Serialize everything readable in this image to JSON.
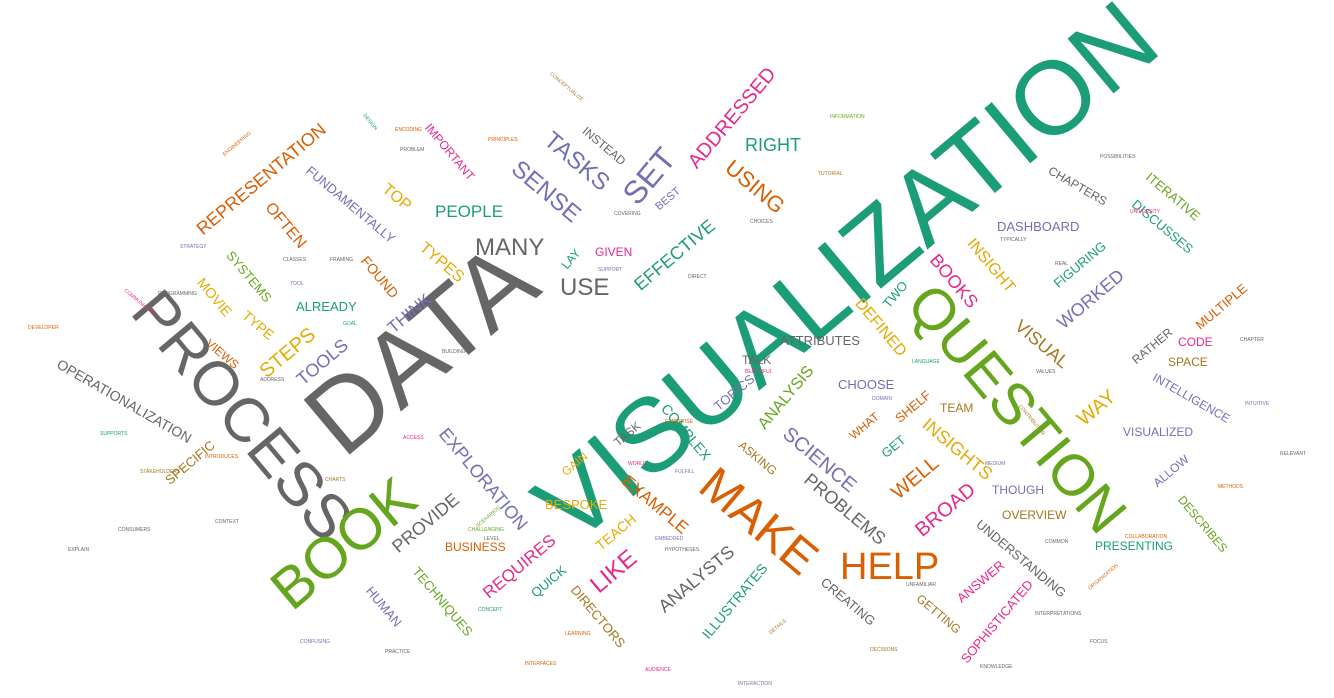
{
  "palette": {
    "teal": "#1b9e77",
    "orange": "#d95f02",
    "purple": "#7570b3",
    "magenta": "#e7298a",
    "green": "#66a61e",
    "gold": "#e6ab02",
    "brown": "#a6761d",
    "gray": "#666666"
  },
  "words": [
    {
      "text": "VISUALIZATION",
      "color": "teal"
    },
    {
      "text": "DATA",
      "color": "gray"
    },
    {
      "text": "PROCESS",
      "color": "gray"
    },
    {
      "text": "QUESTION",
      "color": "green"
    },
    {
      "text": "BOOK",
      "color": "green"
    },
    {
      "text": "MAKE",
      "color": "orange"
    },
    {
      "text": "HELP",
      "color": "orange"
    },
    {
      "text": "MANY",
      "color": "gray"
    },
    {
      "text": "USE",
      "color": "gray"
    },
    {
      "text": "SET",
      "color": "purple"
    },
    {
      "text": "SENSE",
      "color": "purple"
    },
    {
      "text": "TASKS",
      "color": "purple"
    },
    {
      "text": "ADDRESSED",
      "color": "magenta"
    },
    {
      "text": "USING",
      "color": "orange"
    },
    {
      "text": "RIGHT",
      "color": "teal"
    },
    {
      "text": "REPRESENTATION",
      "color": "orange"
    },
    {
      "text": "OFTEN",
      "color": "orange"
    },
    {
      "text": "FUNDAMENTALLY",
      "color": "purple"
    },
    {
      "text": "TOP",
      "color": "gold"
    },
    {
      "text": "PEOPLE",
      "color": "teal"
    },
    {
      "text": "IMPORTANT",
      "color": "magenta"
    },
    {
      "text": "INSTEAD",
      "color": "gray"
    },
    {
      "text": "BEST",
      "color": "purple"
    },
    {
      "text": "EFFECTIVE",
      "color": "teal"
    },
    {
      "text": "GIVEN",
      "color": "magenta"
    },
    {
      "text": "TYPES",
      "color": "gold"
    },
    {
      "text": "LAY",
      "color": "teal"
    },
    {
      "text": "FOUND",
      "color": "orange"
    },
    {
      "text": "SYSTEMS",
      "color": "green"
    },
    {
      "text": "MOVIE",
      "color": "gold"
    },
    {
      "text": "TYPE",
      "color": "gold"
    },
    {
      "text": "ALREADY",
      "color": "teal"
    },
    {
      "text": "THINK",
      "color": "purple"
    },
    {
      "text": "STEPS",
      "color": "gold"
    },
    {
      "text": "TOOLS",
      "color": "purple"
    },
    {
      "text": "VIEWS",
      "color": "orange"
    },
    {
      "text": "OPERATIONALIZATION",
      "color": "gray"
    },
    {
      "text": "SPECIFIC",
      "color": "brown"
    },
    {
      "text": "EXPLORATION",
      "color": "purple"
    },
    {
      "text": "PROVIDE",
      "color": "gray"
    },
    {
      "text": "BUSINESS",
      "color": "orange"
    },
    {
      "text": "REQUIRES",
      "color": "magenta"
    },
    {
      "text": "TECHNIQUES",
      "color": "green"
    },
    {
      "text": "HUMAN",
      "color": "purple"
    },
    {
      "text": "QUICK",
      "color": "teal"
    },
    {
      "text": "LIKE",
      "color": "magenta"
    },
    {
      "text": "TEACH",
      "color": "gold"
    },
    {
      "text": "BESPOKE",
      "color": "gold"
    },
    {
      "text": "GAIN",
      "color": "gold"
    },
    {
      "text": "DIRECTORS",
      "color": "brown"
    },
    {
      "text": "ANALYSTS",
      "color": "gray"
    },
    {
      "text": "ILLUSTRATES",
      "color": "teal"
    },
    {
      "text": "EXAMPLE",
      "color": "orange"
    },
    {
      "text": "COMPLEX",
      "color": "teal"
    },
    {
      "text": "TASK",
      "color": "gray"
    },
    {
      "text": "TOPICS",
      "color": "purple"
    },
    {
      "text": "ASKING",
      "color": "brown"
    },
    {
      "text": "TALK",
      "color": "gray"
    },
    {
      "text": "ATTRIBUTES",
      "color": "gray"
    },
    {
      "text": "ANALYSIS",
      "color": "green"
    },
    {
      "text": "SCIENCE",
      "color": "purple"
    },
    {
      "text": "PROBLEMS",
      "color": "gray"
    },
    {
      "text": "CREATING",
      "color": "gray"
    },
    {
      "text": "CHOOSE",
      "color": "purple"
    },
    {
      "text": "WHAT",
      "color": "orange"
    },
    {
      "text": "GET",
      "color": "teal"
    },
    {
      "text": "SHELF",
      "color": "orange"
    },
    {
      "text": "DEFINED",
      "color": "gold"
    },
    {
      "text": "TWO",
      "color": "teal"
    },
    {
      "text": "WELL",
      "color": "orange"
    },
    {
      "text": "BROAD",
      "color": "magenta"
    },
    {
      "text": "INSIGHTS",
      "color": "gold"
    },
    {
      "text": "TEAM",
      "color": "brown"
    },
    {
      "text": "UNDERSTANDING",
      "color": "gray"
    },
    {
      "text": "ANSWER",
      "color": "magenta"
    },
    {
      "text": "GETTING",
      "color": "brown"
    },
    {
      "text": "SOPHISTICATED",
      "color": "magenta"
    },
    {
      "text": "BOOKS",
      "color": "magenta"
    },
    {
      "text": "INSIGHT",
      "color": "gold"
    },
    {
      "text": "VISUAL",
      "color": "brown"
    },
    {
      "text": "WAY",
      "color": "gold"
    },
    {
      "text": "WORKED",
      "color": "purple"
    },
    {
      "text": "FIGURING",
      "color": "teal"
    },
    {
      "text": "DASHBOARD",
      "color": "purple"
    },
    {
      "text": "CHAPTERS",
      "color": "gray"
    },
    {
      "text": "ITERATIVE",
      "color": "green"
    },
    {
      "text": "DISCUSSES",
      "color": "teal"
    },
    {
      "text": "MULTIPLE",
      "color": "orange"
    },
    {
      "text": "CODE",
      "color": "magenta"
    },
    {
      "text": "RATHER",
      "color": "gray"
    },
    {
      "text": "SPACE",
      "color": "brown"
    },
    {
      "text": "INTELLIGENCE",
      "color": "purple"
    },
    {
      "text": "VISUALIZED",
      "color": "purple"
    },
    {
      "text": "ALLOW",
      "color": "purple"
    },
    {
      "text": "THOUGH",
      "color": "purple"
    },
    {
      "text": "OVERVIEW",
      "color": "brown"
    },
    {
      "text": "DESCRIBES",
      "color": "green"
    },
    {
      "text": "PRESENTING",
      "color": "teal"
    },
    {
      "text": "ENGINEERING",
      "color": "orange"
    },
    {
      "text": "COMMUNICATE",
      "color": "magenta"
    },
    {
      "text": "STRATEGY",
      "color": "purple"
    },
    {
      "text": "DESIGN",
      "color": "teal"
    },
    {
      "text": "FRAMING",
      "color": "gray"
    },
    {
      "text": "CHARTS",
      "color": "brown"
    },
    {
      "text": "TOOL",
      "color": "purple"
    },
    {
      "text": "GOAL",
      "color": "teal"
    },
    {
      "text": "COVERING",
      "color": "gray"
    },
    {
      "text": "DIRECT",
      "color": "gray"
    },
    {
      "text": "SUPPORT",
      "color": "purple"
    },
    {
      "text": "PROBLEM",
      "color": "gray"
    },
    {
      "text": "CONCEPTUALIZE",
      "color": "brown"
    },
    {
      "text": "EXPERTISE",
      "color": "orange"
    },
    {
      "text": "DOMAIN",
      "color": "purple"
    },
    {
      "text": "LANGUAGE",
      "color": "teal"
    },
    {
      "text": "BEAUTIFUL",
      "color": "magenta"
    },
    {
      "text": "HYPOTHESES",
      "color": "gray"
    },
    {
      "text": "EMBEDDED",
      "color": "purple"
    },
    {
      "text": "CHALLENGING",
      "color": "green"
    },
    {
      "text": "LEVEL",
      "color": "gray"
    },
    {
      "text": "DETAILS",
      "color": "brown"
    },
    {
      "text": "INTERACTION",
      "color": "purple"
    },
    {
      "text": "COMMON",
      "color": "gray"
    },
    {
      "text": "CONCEPT",
      "color": "teal"
    },
    {
      "text": "ORGANIZATION",
      "color": "orange"
    },
    {
      "text": "COLLABORATION",
      "color": "orange"
    },
    {
      "text": "INTERPRETATIONS",
      "color": "gray"
    },
    {
      "text": "UNFAMILIAR",
      "color": "gray"
    },
    {
      "text": "MEDIUM",
      "color": "purple"
    },
    {
      "text": "TYPICALLY",
      "color": "gray"
    },
    {
      "text": "CLASSES",
      "color": "gray"
    },
    {
      "text": "ACCESS",
      "color": "magenta"
    },
    {
      "text": "INTERFACES",
      "color": "orange"
    },
    {
      "text": "SCENARIOS",
      "color": "green"
    },
    {
      "text": "CONTRIBUTION",
      "color": "brown"
    },
    {
      "text": "CONFUSING",
      "color": "purple"
    },
    {
      "text": "WORLD",
      "color": "magenta"
    },
    {
      "text": "FULFILL",
      "color": "purple"
    },
    {
      "text": "UNIVERSITY",
      "color": "magenta"
    },
    {
      "text": "PROGRAMMING",
      "color": "gray"
    },
    {
      "text": "CONSUMERS",
      "color": "gray"
    },
    {
      "text": "DEVELOPER",
      "color": "orange"
    },
    {
      "text": "POSSIBILITIES",
      "color": "gray"
    },
    {
      "text": "BUILDING",
      "color": "gray"
    },
    {
      "text": "ENCODING",
      "color": "orange"
    },
    {
      "text": "CONTEXT",
      "color": "gray"
    },
    {
      "text": "INTRODUCES",
      "color": "orange"
    },
    {
      "text": "SUPPORTS",
      "color": "teal"
    },
    {
      "text": "TUTORIAL",
      "color": "brown"
    },
    {
      "text": "EXPLAIN",
      "color": "gray"
    },
    {
      "text": "STAKEHOLDERS",
      "color": "brown"
    },
    {
      "text": "PRACTICE",
      "color": "gray"
    },
    {
      "text": "CHAPTER",
      "color": "gray"
    },
    {
      "text": "RELEVANT",
      "color": "gray"
    },
    {
      "text": "INTUITIVE",
      "color": "purple"
    },
    {
      "text": "METHODS",
      "color": "orange"
    },
    {
      "text": "FOCUS",
      "color": "gray"
    },
    {
      "text": "KNOWLEDGE",
      "color": "gray"
    },
    {
      "text": "DECISIONS",
      "color": "brown"
    },
    {
      "text": "AUDIENCE",
      "color": "magenta"
    },
    {
      "text": "LEARNING",
      "color": "orange"
    },
    {
      "text": "PRINCIPLES",
      "color": "orange"
    },
    {
      "text": "INFORMATION",
      "color": "green"
    },
    {
      "text": "REAL",
      "color": "gray"
    },
    {
      "text": "VALUES",
      "color": "gray"
    },
    {
      "text": "ADDRESS",
      "color": "gray"
    },
    {
      "text": "CHOICES",
      "color": "gray"
    }
  ]
}
